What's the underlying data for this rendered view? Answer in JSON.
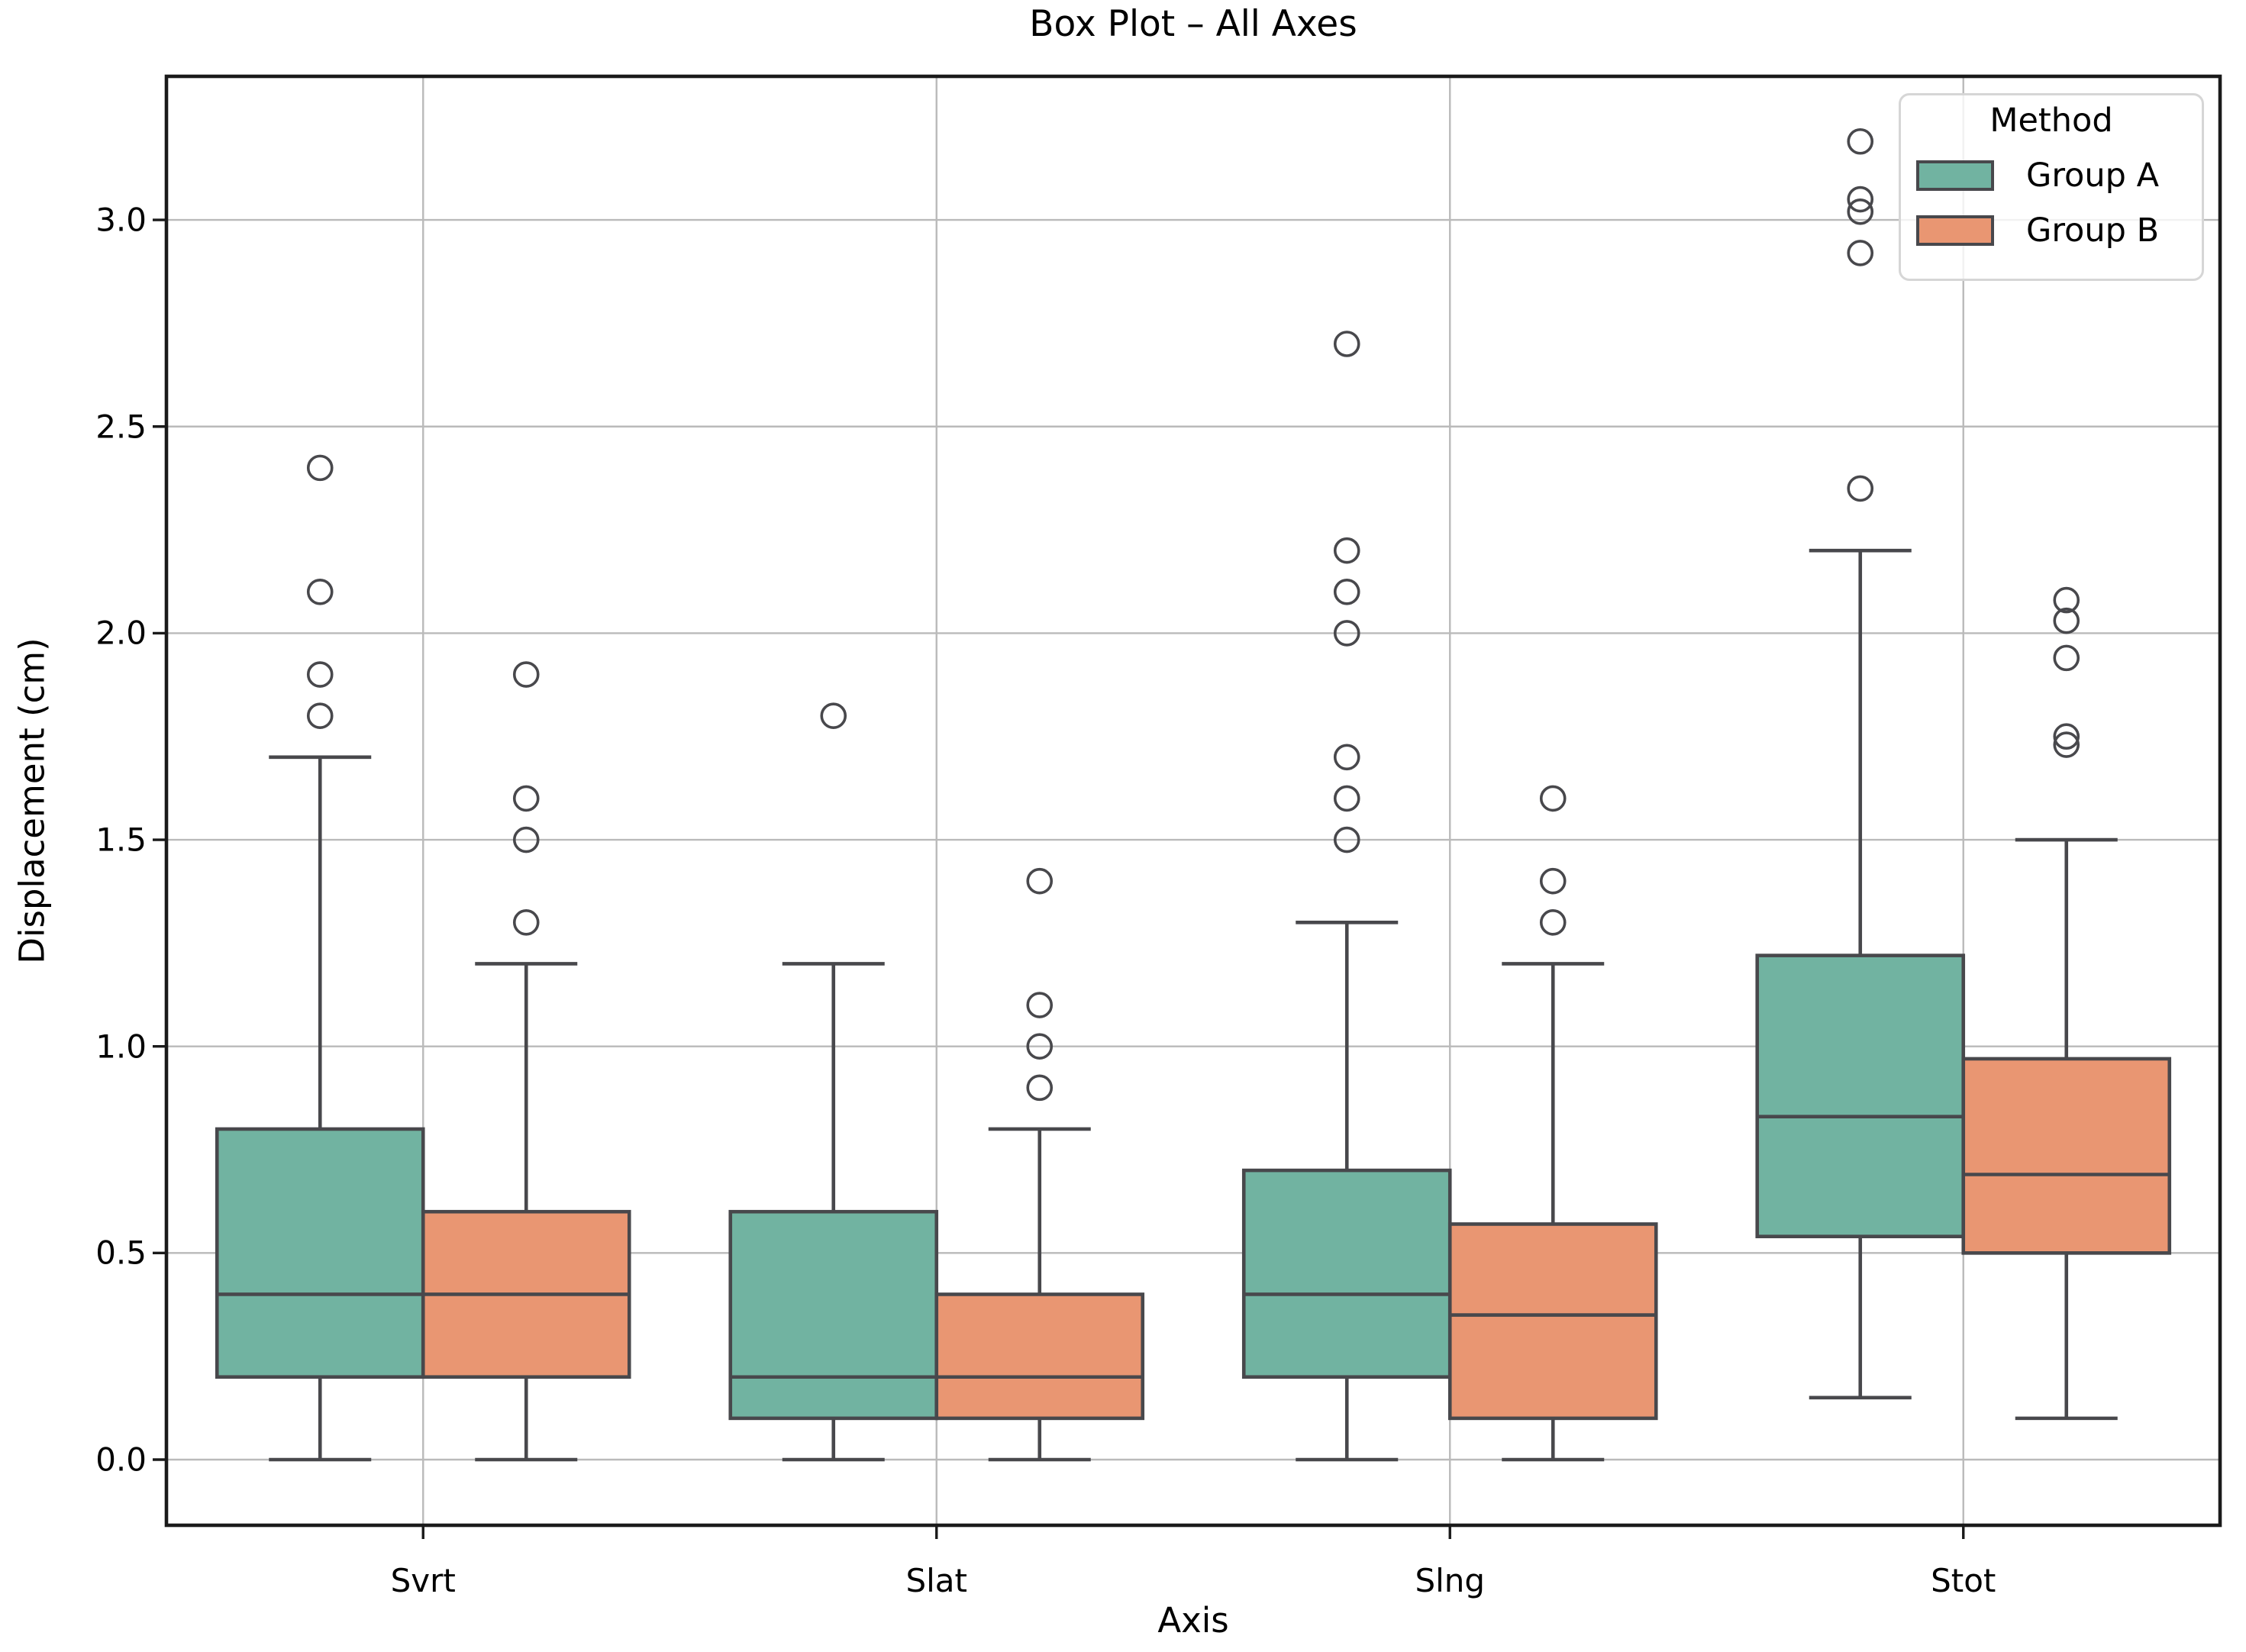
{
  "chart_data": {
    "type": "box",
    "title": "Box Plot – All Axes",
    "xlabel": "Axis",
    "ylabel": "Displacement (cm)",
    "categories": [
      "Svrt",
      "Slat",
      "Slng",
      "Stot"
    ],
    "ylim": [
      -0.16,
      3.35
    ],
    "yticks": [
      "0.0",
      "0.5",
      "1.0",
      "1.5",
      "2.0",
      "2.5",
      "3.0"
    ],
    "grid": true,
    "legend": {
      "title": "Method",
      "position": "upper right"
    },
    "series": [
      {
        "name": "Group A",
        "color": "#71b3a1",
        "boxes": [
          {
            "category": "Svrt",
            "whislo": 0.0,
            "q1": 0.2,
            "med": 0.4,
            "q3": 0.8,
            "whishi": 1.7,
            "outliers": [
              1.8,
              1.9,
              2.1,
              2.4
            ]
          },
          {
            "category": "Slat",
            "whislo": 0.0,
            "q1": 0.1,
            "med": 0.2,
            "q3": 0.6,
            "whishi": 1.2,
            "outliers": [
              1.8
            ]
          },
          {
            "category": "Slng",
            "whislo": 0.0,
            "q1": 0.2,
            "med": 0.4,
            "q3": 0.7,
            "whishi": 1.3,
            "outliers": [
              1.5,
              1.6,
              1.7,
              2.0,
              2.1,
              2.2,
              2.7
            ]
          },
          {
            "category": "Stot",
            "whislo": 0.15,
            "q1": 0.54,
            "med": 0.83,
            "q3": 1.22,
            "whishi": 2.2,
            "outliers": [
              2.35,
              2.92,
              3.02,
              3.05,
              3.19
            ]
          }
        ]
      },
      {
        "name": "Group B",
        "color": "#e99672",
        "boxes": [
          {
            "category": "Svrt",
            "whislo": 0.0,
            "q1": 0.2,
            "med": 0.4,
            "q3": 0.6,
            "whishi": 1.2,
            "outliers": [
              1.3,
              1.5,
              1.6,
              1.9
            ]
          },
          {
            "category": "Slat",
            "whislo": 0.0,
            "q1": 0.1,
            "med": 0.2,
            "q3": 0.4,
            "whishi": 0.8,
            "outliers": [
              0.9,
              1.0,
              1.1,
              1.4
            ]
          },
          {
            "category": "Slng",
            "whislo": 0.0,
            "q1": 0.1,
            "med": 0.35,
            "q3": 0.57,
            "whishi": 1.2,
            "outliers": [
              1.3,
              1.4,
              1.6
            ]
          },
          {
            "category": "Stot",
            "whislo": 0.1,
            "q1": 0.5,
            "med": 0.69,
            "q3": 0.97,
            "whishi": 1.5,
            "outliers": [
              1.73,
              1.75,
              1.94,
              2.03,
              2.08
            ]
          }
        ]
      }
    ],
    "style": {
      "box_line_color": "#48484c",
      "gridline_color": "#bababa",
      "spine_color": "#1a1a1a",
      "background": "#ffffff"
    }
  }
}
